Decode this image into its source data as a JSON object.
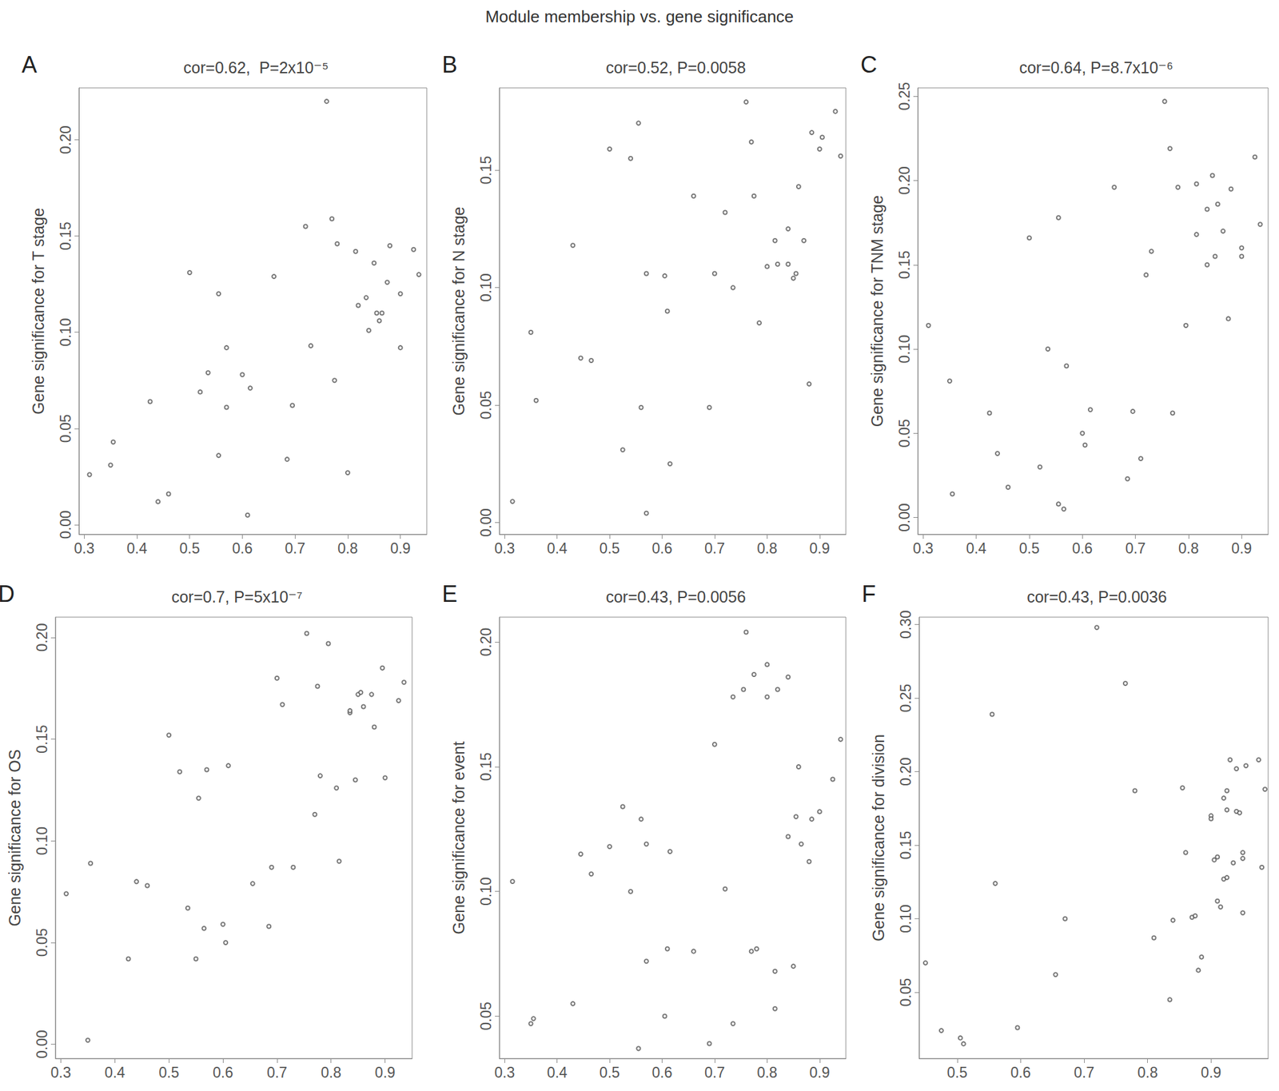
{
  "title": "Module membership vs. gene significance",
  "chart_data": [
    {
      "type": "scatter",
      "panel": "A",
      "title": "cor=0.62,  P=2x10⁻⁵",
      "y_label": "Gene significance for T stage",
      "color": "#555555",
      "marker": "circle",
      "xlim": [
        0.29,
        0.95
      ],
      "xticks": [
        0.3,
        0.4,
        0.5,
        0.6,
        0.7,
        0.8,
        0.9
      ],
      "ylim": [
        -0.005,
        0.227
      ],
      "yticks": [
        {
          "value": 0,
          "label": "0.00"
        },
        {
          "value": 0.05,
          "label": "0.05"
        },
        {
          "value": 0.1,
          "label": "0.10"
        },
        {
          "value": 0.15,
          "label": "0.15"
        },
        {
          "value": 0.2,
          "label": "0.20"
        }
      ],
      "x": [
        0.31,
        0.35,
        0.355,
        0.425,
        0.44,
        0.46,
        0.5,
        0.52,
        0.535,
        0.555,
        0.555,
        0.57,
        0.57,
        0.6,
        0.61,
        0.615,
        0.66,
        0.685,
        0.695,
        0.72,
        0.73,
        0.76,
        0.77,
        0.775,
        0.78,
        0.8,
        0.815,
        0.82,
        0.835,
        0.84,
        0.85,
        0.855,
        0.86,
        0.865,
        0.875,
        0.88,
        0.9,
        0.9,
        0.925,
        0.935
      ],
      "values": [
        0.026,
        0.031,
        0.043,
        0.064,
        0.012,
        0.016,
        0.131,
        0.069,
        0.079,
        0.12,
        0.036,
        0.092,
        0.061,
        0.078,
        0.005,
        0.071,
        0.129,
        0.034,
        0.062,
        0.155,
        0.093,
        0.22,
        0.159,
        0.075,
        0.146,
        0.027,
        0.142,
        0.114,
        0.118,
        0.101,
        0.136,
        0.11,
        0.106,
        0.11,
        0.126,
        0.145,
        0.12,
        0.092,
        0.143,
        0.13
      ]
    },
    {
      "type": "scatter",
      "panel": "B",
      "title": "cor=0.52, P=0.0058",
      "y_label": "Gene significance for N stage",
      "color": "#555555",
      "marker": "circle",
      "xlim": [
        0.29,
        0.95
      ],
      "xticks": [
        0.3,
        0.4,
        0.5,
        0.6,
        0.7,
        0.8,
        0.9
      ],
      "ylim": [
        -0.005,
        0.185
      ],
      "yticks": [
        {
          "value": 0,
          "label": "0.00"
        },
        {
          "value": 0.05,
          "label": "0.05"
        },
        {
          "value": 0.1,
          "label": "0.10"
        },
        {
          "value": 0.15,
          "label": "0.15"
        }
      ],
      "x": [
        0.315,
        0.35,
        0.36,
        0.43,
        0.445,
        0.465,
        0.5,
        0.525,
        0.54,
        0.555,
        0.56,
        0.57,
        0.57,
        0.605,
        0.61,
        0.615,
        0.66,
        0.69,
        0.7,
        0.72,
        0.735,
        0.76,
        0.77,
        0.775,
        0.785,
        0.8,
        0.815,
        0.82,
        0.84,
        0.84,
        0.85,
        0.855,
        0.86,
        0.87,
        0.88,
        0.885,
        0.9,
        0.905,
        0.93,
        0.94
      ],
      "values": [
        0.009,
        0.081,
        0.052,
        0.118,
        0.07,
        0.069,
        0.159,
        0.031,
        0.155,
        0.17,
        0.049,
        0.004,
        0.106,
        0.105,
        0.09,
        0.025,
        0.139,
        0.049,
        0.106,
        0.132,
        0.1,
        0.179,
        0.162,
        0.139,
        0.085,
        0.109,
        0.12,
        0.11,
        0.125,
        0.11,
        0.104,
        0.106,
        0.143,
        0.12,
        0.059,
        0.166,
        0.159,
        0.164,
        0.175,
        0.156
      ]
    },
    {
      "type": "scatter",
      "panel": "C",
      "title": "cor=0.64, P=8.7x10⁻⁶",
      "y_label": "Gene significance for TNM stage",
      "color": "#555555",
      "marker": "circle",
      "xlim": [
        0.29,
        0.95
      ],
      "xticks": [
        0.3,
        0.4,
        0.5,
        0.6,
        0.7,
        0.8,
        0.9
      ],
      "ylim": [
        -0.01,
        0.255
      ],
      "yticks": [
        {
          "value": 0,
          "label": "0.00"
        },
        {
          "value": 0.05,
          "label": "0.05"
        },
        {
          "value": 0.1,
          "label": "0.10"
        },
        {
          "value": 0.15,
          "label": "0.15"
        },
        {
          "value": 0.2,
          "label": "0.20"
        },
        {
          "value": 0.25,
          "label": "0.25"
        }
      ],
      "x": [
        0.31,
        0.35,
        0.355,
        0.425,
        0.44,
        0.46,
        0.5,
        0.52,
        0.535,
        0.555,
        0.555,
        0.565,
        0.57,
        0.6,
        0.605,
        0.615,
        0.66,
        0.685,
        0.695,
        0.71,
        0.72,
        0.73,
        0.755,
        0.765,
        0.77,
        0.78,
        0.795,
        0.815,
        0.815,
        0.835,
        0.835,
        0.845,
        0.85,
        0.855,
        0.865,
        0.875,
        0.88,
        0.9,
        0.9,
        0.925,
        0.935
      ],
      "values": [
        0.114,
        0.081,
        0.014,
        0.062,
        0.038,
        0.018,
        0.166,
        0.03,
        0.1,
        0.178,
        0.008,
        0.005,
        0.09,
        0.05,
        0.043,
        0.064,
        0.196,
        0.023,
        0.063,
        0.035,
        0.144,
        0.158,
        0.247,
        0.219,
        0.062,
        0.196,
        0.114,
        0.198,
        0.168,
        0.183,
        0.15,
        0.203,
        0.155,
        0.186,
        0.17,
        0.118,
        0.195,
        0.16,
        0.155,
        0.214,
        0.174
      ]
    },
    {
      "type": "scatter",
      "panel": "D",
      "title": "cor=0.7, P=5x10⁻⁷",
      "y_label": "Gene significance for OS",
      "color": "#555555",
      "marker": "circle",
      "xlim": [
        0.29,
        0.95
      ],
      "xticks": [
        0.3,
        0.4,
        0.5,
        0.6,
        0.7,
        0.8,
        0.9
      ],
      "ylim": [
        -0.007,
        0.21
      ],
      "yticks": [
        {
          "value": 0,
          "label": "0.00"
        },
        {
          "value": 0.05,
          "label": "0.05"
        },
        {
          "value": 0.1,
          "label": "0.10"
        },
        {
          "value": 0.15,
          "label": "0.15"
        },
        {
          "value": 0.2,
          "label": "0.20"
        }
      ],
      "x": [
        0.31,
        0.35,
        0.355,
        0.425,
        0.44,
        0.46,
        0.5,
        0.52,
        0.535,
        0.55,
        0.555,
        0.565,
        0.57,
        0.6,
        0.605,
        0.61,
        0.655,
        0.685,
        0.69,
        0.7,
        0.71,
        0.73,
        0.755,
        0.77,
        0.775,
        0.78,
        0.795,
        0.81,
        0.815,
        0.835,
        0.835,
        0.845,
        0.85,
        0.855,
        0.86,
        0.875,
        0.88,
        0.895,
        0.9,
        0.925,
        0.935
      ],
      "values": [
        0.074,
        0.002,
        0.089,
        0.042,
        0.08,
        0.078,
        0.152,
        0.134,
        0.067,
        0.042,
        0.121,
        0.057,
        0.135,
        0.059,
        0.05,
        0.137,
        0.079,
        0.058,
        0.087,
        0.18,
        0.167,
        0.087,
        0.202,
        0.113,
        0.176,
        0.132,
        0.197,
        0.126,
        0.09,
        0.163,
        0.164,
        0.13,
        0.172,
        0.173,
        0.166,
        0.172,
        0.156,
        0.185,
        0.131,
        0.169,
        0.178
      ]
    },
    {
      "type": "scatter",
      "panel": "E",
      "title": "cor=0.43, P=0.0056",
      "y_label": "Gene significance for event",
      "color": "#555555",
      "marker": "circle",
      "xlim": [
        0.29,
        0.95
      ],
      "xticks": [
        0.3,
        0.4,
        0.5,
        0.6,
        0.7,
        0.8,
        0.9
      ],
      "ylim": [
        0.033,
        0.21
      ],
      "yticks": [
        {
          "value": 0.05,
          "label": "0.05"
        },
        {
          "value": 0.1,
          "label": "0.10"
        },
        {
          "value": 0.15,
          "label": "0.15"
        },
        {
          "value": 0.2,
          "label": "0.20"
        }
      ],
      "x": [
        0.315,
        0.35,
        0.355,
        0.43,
        0.445,
        0.465,
        0.5,
        0.525,
        0.54,
        0.555,
        0.56,
        0.57,
        0.57,
        0.605,
        0.61,
        0.615,
        0.66,
        0.69,
        0.7,
        0.72,
        0.735,
        0.735,
        0.755,
        0.76,
        0.77,
        0.775,
        0.78,
        0.8,
        0.8,
        0.815,
        0.815,
        0.82,
        0.84,
        0.84,
        0.85,
        0.855,
        0.86,
        0.865,
        0.88,
        0.885,
        0.9,
        0.925,
        0.94
      ],
      "values": [
        0.104,
        0.047,
        0.049,
        0.055,
        0.115,
        0.107,
        0.118,
        0.134,
        0.1,
        0.037,
        0.129,
        0.072,
        0.119,
        0.05,
        0.077,
        0.116,
        0.076,
        0.039,
        0.159,
        0.101,
        0.047,
        0.178,
        0.181,
        0.204,
        0.076,
        0.187,
        0.077,
        0.191,
        0.178,
        0.053,
        0.068,
        0.181,
        0.122,
        0.186,
        0.07,
        0.13,
        0.15,
        0.119,
        0.112,
        0.129,
        0.132,
        0.145,
        0.161
      ]
    },
    {
      "type": "scatter",
      "panel": "F",
      "title": "cor=0.43, P=0.0036",
      "y_label": "Gene significance for division",
      "color": "#555555",
      "marker": "circle",
      "xlim": [
        0.44,
        0.99
      ],
      "xticks": [
        0.5,
        0.6,
        0.7,
        0.8,
        0.9
      ],
      "ylim": [
        0.005,
        0.305
      ],
      "yticks": [
        {
          "value": 0.05,
          "label": "0.05"
        },
        {
          "value": 0.1,
          "label": "0.10"
        },
        {
          "value": 0.15,
          "label": "0.15"
        },
        {
          "value": 0.2,
          "label": "0.20"
        },
        {
          "value": 0.25,
          "label": "0.25"
        },
        {
          "value": 0.3,
          "label": "0.30"
        }
      ],
      "x": [
        0.45,
        0.475,
        0.505,
        0.51,
        0.555,
        0.56,
        0.595,
        0.655,
        0.67,
        0.72,
        0.765,
        0.78,
        0.81,
        0.835,
        0.84,
        0.855,
        0.86,
        0.87,
        0.875,
        0.88,
        0.885,
        0.9,
        0.9,
        0.905,
        0.91,
        0.91,
        0.915,
        0.92,
        0.92,
        0.925,
        0.925,
        0.925,
        0.93,
        0.935,
        0.94,
        0.94,
        0.945,
        0.95,
        0.95,
        0.95,
        0.955,
        0.975,
        0.98,
        0.985
      ],
      "values": [
        0.07,
        0.024,
        0.019,
        0.015,
        0.239,
        0.124,
        0.026,
        0.062,
        0.1,
        0.298,
        0.26,
        0.187,
        0.087,
        0.045,
        0.099,
        0.189,
        0.145,
        0.101,
        0.102,
        0.065,
        0.074,
        0.17,
        0.168,
        0.14,
        0.142,
        0.112,
        0.108,
        0.127,
        0.182,
        0.187,
        0.128,
        0.174,
        0.208,
        0.138,
        0.202,
        0.173,
        0.172,
        0.104,
        0.145,
        0.141,
        0.204,
        0.208,
        0.135,
        0.188
      ]
    }
  ]
}
